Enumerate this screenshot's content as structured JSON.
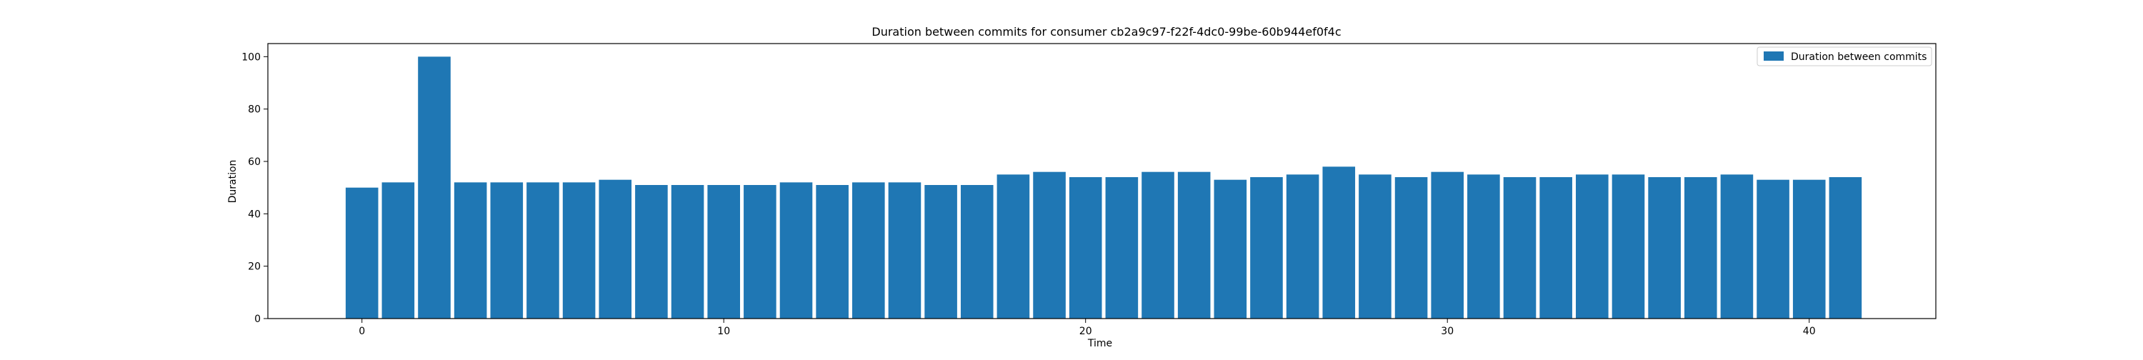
{
  "colors": {
    "bar": "#1f77b4",
    "axis": "#000000",
    "background": "#ffffff"
  },
  "chart_data": {
    "type": "bar",
    "title": "Duration between commits for consumer cb2a9c97-f22f-4dc0-99be-60b944ef0f4c",
    "xlabel": "Time",
    "ylabel": "Duration",
    "x": [
      0,
      1,
      2,
      3,
      4,
      5,
      6,
      7,
      8,
      9,
      10,
      11,
      12,
      13,
      14,
      15,
      16,
      17,
      18,
      19,
      20,
      21,
      22,
      23,
      24,
      25,
      26,
      27,
      28,
      29,
      30,
      31,
      32,
      33,
      34,
      35,
      36,
      37,
      38,
      39,
      40,
      41
    ],
    "series": [
      {
        "name": "Duration between commits",
        "values": [
          50,
          52,
          100,
          52,
          52,
          52,
          52,
          53,
          51,
          51,
          51,
          51,
          52,
          51,
          52,
          52,
          51,
          51,
          55,
          56,
          54,
          54,
          56,
          56,
          53,
          54,
          55,
          58,
          55,
          54,
          56,
          55,
          54,
          54,
          55,
          55,
          54,
          54,
          55,
          53,
          53,
          54
        ]
      }
    ],
    "xlim": [
      -2.6,
      43.5
    ],
    "ylim": [
      0,
      105
    ],
    "xticks": [
      0,
      10,
      20,
      30,
      40
    ],
    "yticks": [
      0,
      20,
      40,
      60,
      80,
      100
    ],
    "bar_width": 0.9,
    "grid": false,
    "legend_position": "top-right"
  }
}
